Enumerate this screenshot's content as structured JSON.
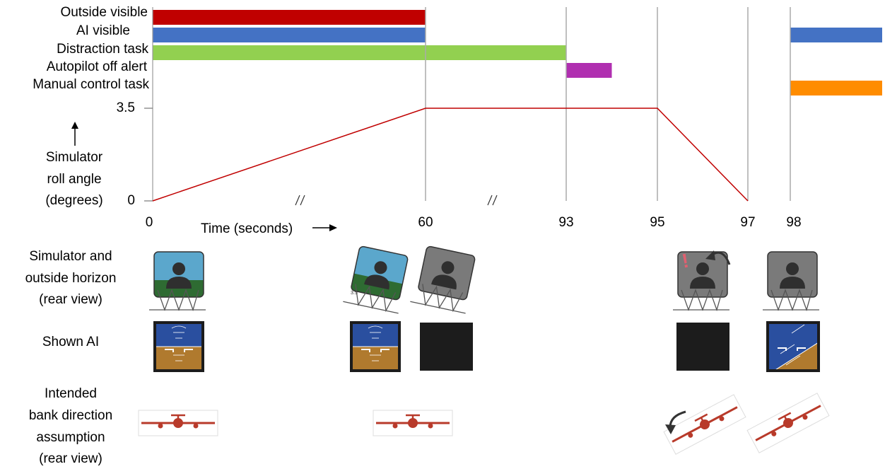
{
  "timeline": {
    "rows": [
      {
        "label": "Outside visible",
        "color": "#c00000",
        "segments": [
          [
            0,
            60
          ]
        ]
      },
      {
        "label": "AI visible",
        "color": "#4472c4",
        "segments": [
          [
            0,
            60
          ],
          [
            98,
            100
          ]
        ]
      },
      {
        "label": "Distraction task",
        "color": "#92d050",
        "segments": [
          [
            0,
            93
          ]
        ]
      },
      {
        "label": "Autopilot off alert",
        "color": "#b02fb0",
        "segments": [
          [
            93,
            94
          ]
        ]
      },
      {
        "label": "Manual control task",
        "color": "#ff8c00",
        "segments": [
          [
            98,
            100
          ]
        ]
      }
    ],
    "vlines": [
      60,
      93,
      95,
      97,
      98
    ]
  },
  "chart_data": {
    "type": "line",
    "series": [
      {
        "x": [
          0,
          60,
          95,
          97
        ],
        "y": [
          0,
          3.5,
          3.5,
          0
        ],
        "color": "#c00000"
      }
    ],
    "ylim": [
      0,
      3.5
    ],
    "xticks": [
      0,
      60,
      93,
      95,
      97,
      98
    ],
    "ytick_labels": [
      "3.5",
      "0"
    ],
    "xtick_labels": [
      "0",
      "60",
      "93",
      "95",
      "97",
      "98"
    ],
    "xlabel": "Time (seconds)",
    "ylabel_lines": [
      "Simulator",
      "roll angle",
      "(degrees)"
    ],
    "axis_break_marks": true
  },
  "rows_labels": {
    "simulator": [
      "Simulator and",
      "outside horizon",
      "(rear view)"
    ],
    "ai": "Shown AI",
    "bank": [
      "Intended",
      "bank direction",
      "assumption",
      "(rear view)"
    ]
  },
  "annotations": {
    "tilt_angle": "3.5°",
    "alert_mark": "!"
  },
  "colors": {
    "sky": "#5ba7cc",
    "ground": "#2e6b32",
    "gray_panel": "#7a7a7a",
    "ai_sky": "#2a4f9f",
    "ai_ground": "#b07a2e",
    "black_screen": "#1c1c1c",
    "plane": "#b83a2a"
  }
}
